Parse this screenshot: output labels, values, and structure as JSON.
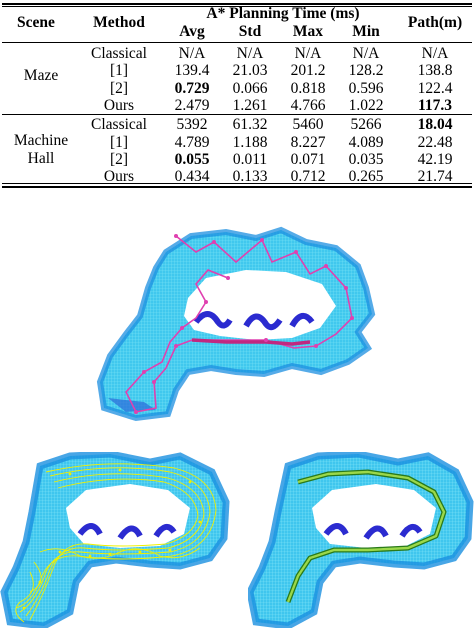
{
  "table": {
    "headers": {
      "scene": "Scene",
      "method": "Method",
      "group": "A* Planning Time (ms)",
      "avg": "Avg",
      "std": "Std",
      "max": "Max",
      "min": "Min",
      "path": "Path(m)"
    },
    "scenes": [
      {
        "name_line1": "Maze",
        "name_line2": ""
      },
      {
        "name_line1": "Machine",
        "name_line2": "Hall"
      }
    ],
    "rows": [
      {
        "method": "Classical",
        "avg": "N/A",
        "std": "N/A",
        "max": "N/A",
        "min": "N/A",
        "path": "N/A"
      },
      {
        "method": "[1]",
        "avg": "139.4",
        "std": "21.03",
        "max": "201.2",
        "min": "128.2",
        "path": "138.8"
      },
      {
        "method": "[2]",
        "avg": "0.729",
        "std": "0.066",
        "max": "0.818",
        "min": "0.596",
        "path": "122.4"
      },
      {
        "method": "Ours",
        "avg": "2.479",
        "std": "1.261",
        "max": "4.766",
        "min": "1.022",
        "path": "117.3"
      },
      {
        "method": "Classical",
        "avg": "5392",
        "std": "61.32",
        "max": "5460",
        "min": "5266",
        "path": "18.04"
      },
      {
        "method": "[1]",
        "avg": "4.789",
        "std": "1.188",
        "max": "8.227",
        "min": "4.089",
        "path": "22.48"
      },
      {
        "method": "[2]",
        "avg": "0.055",
        "std": "0.011",
        "max": "0.071",
        "min": "0.035",
        "path": "42.19"
      },
      {
        "method": "Ours",
        "avg": "0.434",
        "std": "0.133",
        "max": "0.712",
        "min": "0.265",
        "path": "21.74"
      }
    ],
    "bold_cells": [
      "2.avg",
      "3.path",
      "4.path",
      "6.avg"
    ]
  },
  "figures": {
    "top_map": {
      "path_color": "#e040b0",
      "map_colors": [
        "#1a9fe0",
        "#56e0f0",
        "#2b2bd0"
      ]
    },
    "bottom_left_map": {
      "path_color": "#f0f000"
    },
    "bottom_right_map": {
      "path_color": "#2a7a1a",
      "path_fill": "#9bd84a"
    }
  }
}
